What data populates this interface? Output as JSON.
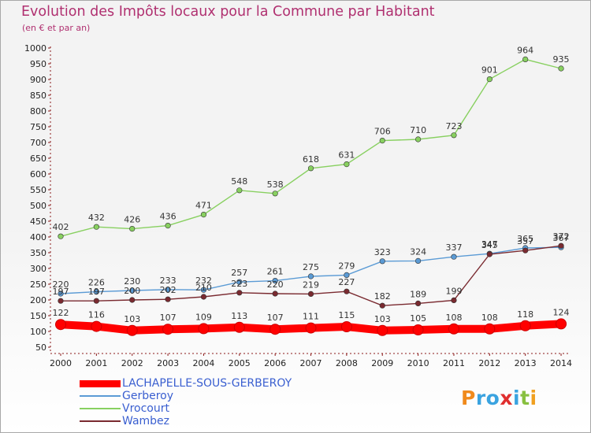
{
  "title": "Evolution des Impôts locaux pour la Commune par Habitant",
  "subtitle": "(en € et par an)",
  "logo": {
    "text": "Proxiti"
  },
  "chart_data": {
    "type": "line",
    "title": "Evolution des Impôts locaux pour la Commune par Habitant",
    "subtitle": "(en € et par an)",
    "xlabel": "",
    "ylabel": "",
    "ylim": [
      50,
      1000
    ],
    "y_ticks": [
      50,
      100,
      150,
      200,
      250,
      300,
      350,
      400,
      450,
      500,
      550,
      600,
      650,
      700,
      750,
      800,
      850,
      900,
      950,
      1000
    ],
    "grid": false,
    "legend_position": "bottom-left",
    "x": [
      "2000",
      "2001",
      "2002",
      "2003",
      "2004",
      "2005",
      "2006",
      "2007",
      "2008",
      "2009",
      "2010",
      "2011",
      "2012",
      "2013",
      "2014"
    ],
    "series": [
      {
        "name": "LACHAPELLE-SOUS-GERBEROY",
        "color": "#ff0000",
        "style": "thick",
        "values": [
          122,
          116,
          103,
          107,
          109,
          113,
          107,
          111,
          115,
          103,
          105,
          108,
          108,
          118,
          124
        ]
      },
      {
        "name": "Gerberoy",
        "color": "#5b9bd5",
        "style": "normal",
        "values": [
          220,
          226,
          230,
          233,
          232,
          257,
          261,
          275,
          279,
          323,
          324,
          337,
          347,
          365,
          367
        ]
      },
      {
        "name": "Vrocourt",
        "color": "#88d060",
        "style": "normal",
        "values": [
          402,
          432,
          426,
          436,
          471,
          548,
          538,
          618,
          631,
          706,
          710,
          723,
          901,
          964,
          935
        ]
      },
      {
        "name": "Wambez",
        "color": "#7a2a30",
        "style": "normal",
        "values": [
          197,
          197,
          200,
          202,
          210,
          223,
          220,
          219,
          227,
          182,
          189,
          199,
          345,
          357,
          372
        ]
      }
    ]
  }
}
